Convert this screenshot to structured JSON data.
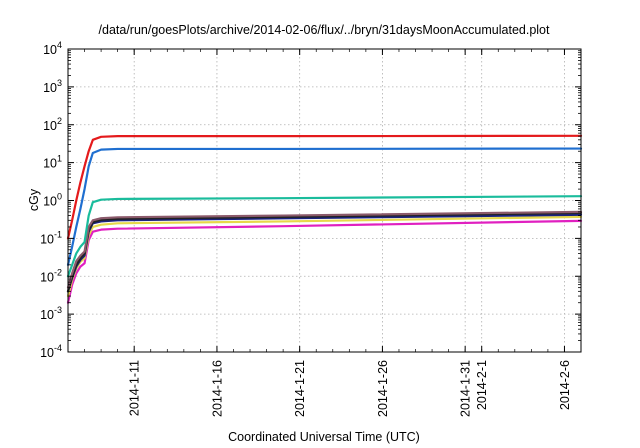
{
  "chart_data": {
    "type": "line",
    "title": "/data/run/goesPlots/archive/2014-02-06/flux/../bryn/31daysMoonAccumulated.plot",
    "xlabel": "Coordinated Universal Time (UTC)",
    "ylabel": "cGy",
    "y_scale": "log",
    "ylim": [
      0.0001,
      10000
    ],
    "y_ticks": [
      {
        "value": 0.0001,
        "base": "10",
        "exp": "-4"
      },
      {
        "value": 0.001,
        "base": "10",
        "exp": "-3"
      },
      {
        "value": 0.01,
        "base": "10",
        "exp": "-2"
      },
      {
        "value": 0.1,
        "base": "10",
        "exp": "-1"
      },
      {
        "value": 1,
        "base": "10",
        "exp": "0"
      },
      {
        "value": 10,
        "base": "10",
        "exp": "1"
      },
      {
        "value": 100,
        "base": "10",
        "exp": "2"
      },
      {
        "value": 1000,
        "base": "10",
        "exp": "3"
      },
      {
        "value": 10000,
        "base": "10",
        "exp": "4"
      }
    ],
    "xlim": [
      "2014-01-07",
      "2014-02-07"
    ],
    "x_ticks": [
      {
        "label": "2014-1-11",
        "date": "2014-01-11"
      },
      {
        "label": "2014-1-16",
        "date": "2014-01-16"
      },
      {
        "label": "2014-1-21",
        "date": "2014-01-21"
      },
      {
        "label": "2014-1-26",
        "date": "2014-01-26"
      },
      {
        "label": "2014-1-31",
        "date": "2014-01-31"
      },
      {
        "label": "2014-2-1",
        "date": "2014-02-01"
      },
      {
        "label": "2014-2-6",
        "date": "2014-02-06"
      }
    ],
    "grid": true,
    "series": [
      {
        "color": "#e41a1c",
        "x": [
          "2014-01-07",
          "2014-01-07T06:00",
          "2014-01-07T12:00",
          "2014-01-07T18:00",
          "2014-01-08",
          "2014-01-08T06:00",
          "2014-01-08T12:00",
          "2014-01-09",
          "2014-01-10",
          "2014-01-20",
          "2014-02-07"
        ],
        "values": [
          0.1,
          0.3,
          1,
          3,
          8,
          20,
          40,
          48,
          50,
          50,
          51
        ]
      },
      {
        "color": "#1f6fd0",
        "x": [
          "2014-01-07",
          "2014-01-07T06:00",
          "2014-01-07T12:00",
          "2014-01-07T18:00",
          "2014-01-08",
          "2014-01-08T06:00",
          "2014-01-08T12:00",
          "2014-01-09",
          "2014-01-10",
          "2014-01-20",
          "2014-02-07"
        ],
        "values": [
          0.02,
          0.06,
          0.2,
          0.6,
          2,
          8,
          18,
          22,
          23,
          23,
          23.5
        ]
      },
      {
        "color": "#1abc9c",
        "x": [
          "2014-01-07",
          "2014-01-07T06:00",
          "2014-01-07T12:00",
          "2014-01-07T18:00",
          "2014-01-08",
          "2014-01-08T06:00",
          "2014-01-08T12:00",
          "2014-01-09",
          "2014-01-10",
          "2014-01-20",
          "2014-02-07"
        ],
        "values": [
          0.01,
          0.02,
          0.04,
          0.06,
          0.08,
          0.4,
          0.9,
          1.05,
          1.1,
          1.15,
          1.3
        ]
      },
      {
        "color": "#8b5a6b",
        "x": [
          "2014-01-07",
          "2014-01-07T06:00",
          "2014-01-07T12:00",
          "2014-01-07T18:00",
          "2014-01-08",
          "2014-01-08T06:00",
          "2014-01-08T12:00",
          "2014-01-09",
          "2014-01-10",
          "2014-01-20",
          "2014-02-07"
        ],
        "values": [
          0.005,
          0.012,
          0.025,
          0.035,
          0.045,
          0.2,
          0.3,
          0.34,
          0.36,
          0.4,
          0.5
        ]
      },
      {
        "color": "#222222",
        "x": [
          "2014-01-07",
          "2014-01-07T06:00",
          "2014-01-07T12:00",
          "2014-01-07T18:00",
          "2014-01-08",
          "2014-01-08T06:00",
          "2014-01-08T12:00",
          "2014-01-09",
          "2014-01-10",
          "2014-01-20",
          "2014-02-07"
        ],
        "values": [
          0.004,
          0.01,
          0.02,
          0.03,
          0.04,
          0.17,
          0.27,
          0.31,
          0.33,
          0.37,
          0.47
        ]
      },
      {
        "color": "#1a237e",
        "x": [
          "2014-01-07",
          "2014-01-07T06:00",
          "2014-01-07T12:00",
          "2014-01-07T18:00",
          "2014-01-08",
          "2014-01-08T06:00",
          "2014-01-08T12:00",
          "2014-01-09",
          "2014-01-10",
          "2014-01-20",
          "2014-02-07"
        ],
        "values": [
          0.004,
          0.009,
          0.018,
          0.027,
          0.035,
          0.15,
          0.25,
          0.28,
          0.3,
          0.34,
          0.42
        ]
      },
      {
        "color": "#e6d84a",
        "x": [
          "2014-01-07",
          "2014-01-07T06:00",
          "2014-01-07T12:00",
          "2014-01-07T18:00",
          "2014-01-08",
          "2014-01-08T06:00",
          "2014-01-08T12:00",
          "2014-01-09",
          "2014-01-10",
          "2014-01-20",
          "2014-02-07"
        ],
        "values": [
          0.003,
          0.008,
          0.016,
          0.024,
          0.03,
          0.12,
          0.2,
          0.23,
          0.25,
          0.28,
          0.37
        ]
      },
      {
        "color": "#e020c0",
        "x": [
          "2014-01-07",
          "2014-01-07T06:00",
          "2014-01-07T12:00",
          "2014-01-07T18:00",
          "2014-01-08",
          "2014-01-08T06:00",
          "2014-01-08T12:00",
          "2014-01-09",
          "2014-01-10",
          "2014-01-20",
          "2014-02-07"
        ],
        "values": [
          0.002,
          0.006,
          0.012,
          0.018,
          0.022,
          0.09,
          0.15,
          0.17,
          0.18,
          0.21,
          0.29
        ]
      }
    ]
  }
}
